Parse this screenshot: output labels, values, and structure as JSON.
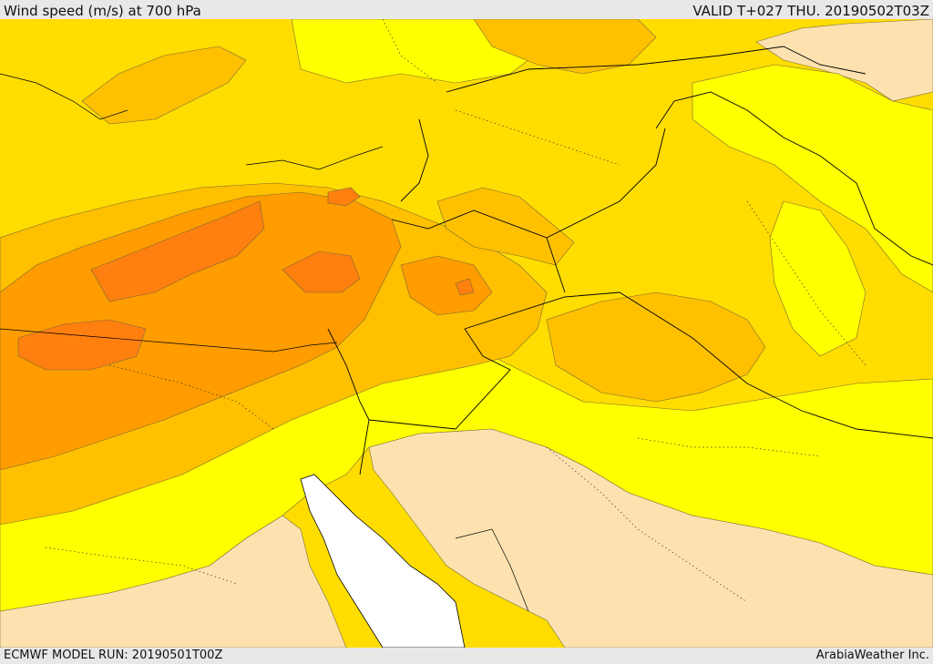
{
  "header": {
    "title": "Wind speed (m/s) at 700 hPa",
    "valid": "VALID T+027 THU. 20190502T03Z"
  },
  "footer": {
    "model_run": "ECMWF MODEL RUN: 20190501T00Z",
    "credit": "ArabiaWeather Inc."
  },
  "colors": {
    "calm": "#fde2b0",
    "light": "#ffff00",
    "moderate": "#ffdd00",
    "fresh": "#ffc000",
    "strong": "#ff9c00",
    "very_strong": "#ff7f0f",
    "sea": "#ffffff",
    "border": "#000000"
  }
}
